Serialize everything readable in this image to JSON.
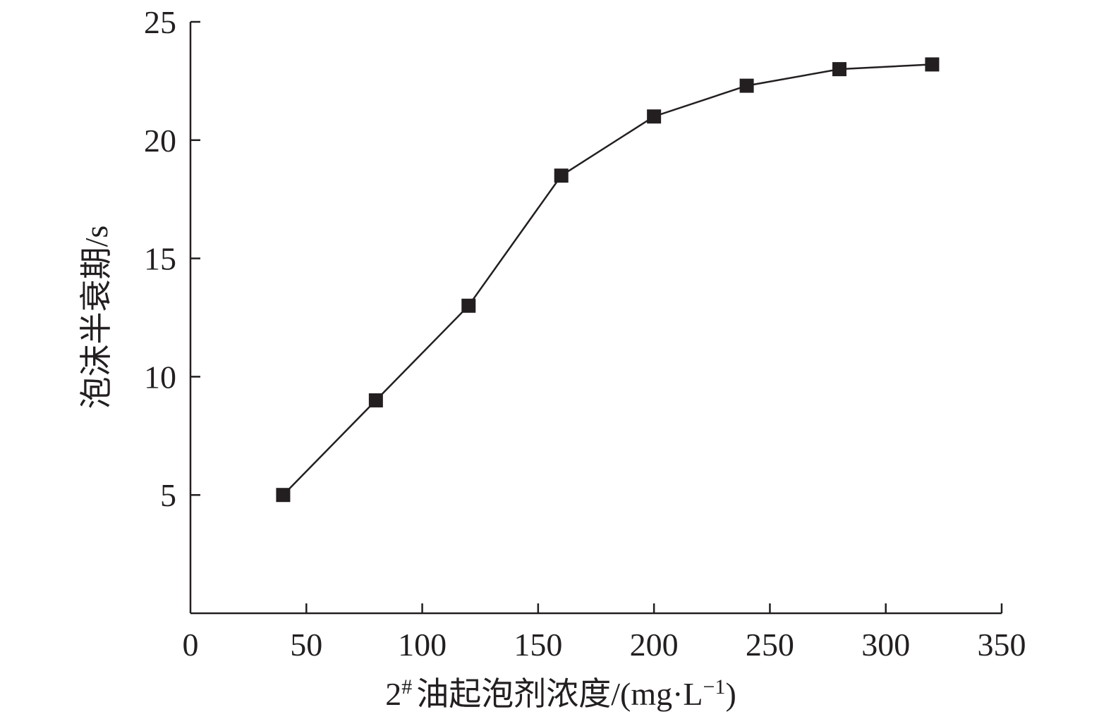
{
  "chart_data": {
    "type": "line",
    "xlabel": "2# 油起泡剂浓度/(mg·L⁻¹)",
    "xlabel_parts": {
      "base": "2",
      "sup": "#",
      "rest": "油起泡剂浓度/(mg·L",
      "unit_sup": "−1",
      "close": ")"
    },
    "ylabel": "泡沫半衰期/s",
    "xlim": [
      0,
      350
    ],
    "ylim": [
      0,
      25
    ],
    "x_ticks": [
      0,
      50,
      100,
      150,
      200,
      250,
      300,
      350
    ],
    "y_ticks": [
      5,
      10,
      15,
      20,
      25
    ],
    "marker": "square",
    "color": "#231f20",
    "series": [
      {
        "x": [
          40,
          80,
          120,
          160,
          200,
          240,
          280,
          320
        ],
        "y": [
          5.0,
          9.0,
          13.0,
          18.5,
          21.0,
          22.3,
          23.0,
          23.2
        ]
      }
    ]
  }
}
